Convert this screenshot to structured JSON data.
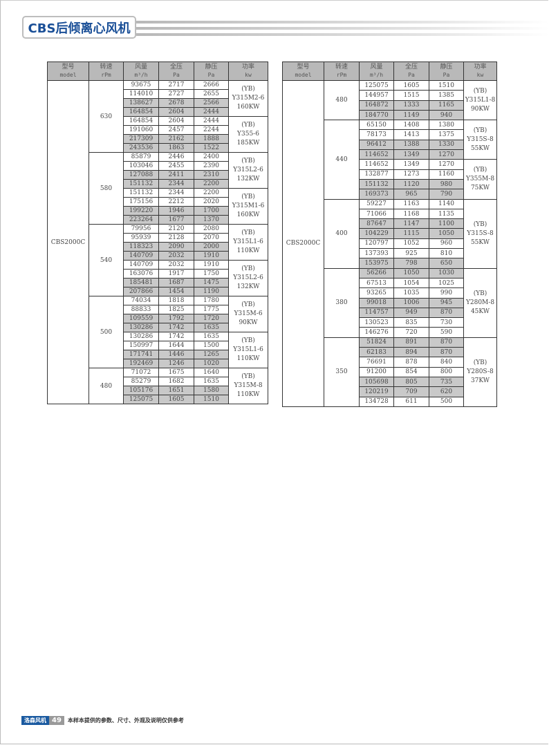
{
  "header": {
    "title": "CBS后倾离心风机"
  },
  "table_headers": [
    {
      "cn": "型号",
      "en": "model"
    },
    {
      "cn": "转速",
      "en": "rPm"
    },
    {
      "cn": "风量",
      "en": "m³/h"
    },
    {
      "cn": "全压",
      "en": "Pa"
    },
    {
      "cn": "静压",
      "en": "Pa"
    },
    {
      "cn": "功率",
      "en": "kw"
    }
  ],
  "left_table": {
    "model": "CBS2000C",
    "groups": [
      {
        "rpm": "630",
        "motors": [
          {
            "label": [
              "(YB)",
              "Y315M2-6",
              "160KW"
            ],
            "rows": [
              [
                "93675",
                "2717",
                "2666",
                false
              ],
              [
                "114010",
                "2727",
                "2655",
                false
              ],
              [
                "138627",
                "2678",
                "2566",
                true
              ],
              [
                "164854",
                "2604",
                "2444",
                true
              ]
            ]
          },
          {
            "label": [
              "(YB)",
              "Y355-6",
              "185KW"
            ],
            "rows": [
              [
                "164854",
                "2604",
                "2444",
                false
              ],
              [
                "191060",
                "2457",
                "2244",
                false
              ],
              [
                "217309",
                "2162",
                "1888",
                true
              ],
              [
                "243536",
                "1863",
                "1522",
                true
              ]
            ]
          }
        ]
      },
      {
        "rpm": "580",
        "motors": [
          {
            "label": [
              "(YB)",
              "Y315L2-6",
              "132KW"
            ],
            "rows": [
              [
                "85879",
                "2446",
                "2400",
                false
              ],
              [
                "103046",
                "2455",
                "2390",
                false
              ],
              [
                "127088",
                "2411",
                "2310",
                true
              ],
              [
                "151132",
                "2344",
                "2200",
                true
              ]
            ]
          },
          {
            "label": [
              "(YB)",
              "Y315M1-6",
              "160KW"
            ],
            "rows": [
              [
                "151132",
                "2344",
                "2200",
                false
              ],
              [
                "175156",
                "2212",
                "2020",
                false
              ],
              [
                "199220",
                "1946",
                "1700",
                true
              ],
              [
                "223264",
                "1677",
                "1370",
                true
              ]
            ]
          }
        ]
      },
      {
        "rpm": "540",
        "motors": [
          {
            "label": [
              "(YB)",
              "Y315L1-6",
              "110KW"
            ],
            "rows": [
              [
                "79956",
                "2120",
                "2080",
                false
              ],
              [
                "95939",
                "2128",
                "2070",
                false
              ],
              [
                "118323",
                "2090",
                "2000",
                true
              ],
              [
                "140709",
                "2032",
                "1910",
                true
              ]
            ]
          },
          {
            "label": [
              "(YB)",
              "Y315L2-6",
              "132KW"
            ],
            "rows": [
              [
                "140709",
                "2032",
                "1910",
                false
              ],
              [
                "163076",
                "1917",
                "1750",
                false
              ],
              [
                "185481",
                "1687",
                "1475",
                true
              ],
              [
                "207866",
                "1454",
                "1190",
                true
              ]
            ]
          }
        ]
      },
      {
        "rpm": "500",
        "motors": [
          {
            "label": [
              "(YB)",
              "Y315M-6",
              "90KW"
            ],
            "rows": [
              [
                "74034",
                "1818",
                "1780",
                false
              ],
              [
                "88833",
                "1825",
                "1775",
                false
              ],
              [
                "109559",
                "1792",
                "1720",
                true
              ],
              [
                "130286",
                "1742",
                "1635",
                true
              ]
            ]
          },
          {
            "label": [
              "(YB)",
              "Y315L1-6",
              "110KW"
            ],
            "rows": [
              [
                "130286",
                "1742",
                "1635",
                false
              ],
              [
                "150997",
                "1644",
                "1500",
                false
              ],
              [
                "171741",
                "1446",
                "1265",
                true
              ],
              [
                "192469",
                "1246",
                "1020",
                true
              ]
            ]
          }
        ]
      },
      {
        "rpm": "480",
        "motors": [
          {
            "label": [
              "(YB)",
              "Y315M-8",
              "110KW"
            ],
            "rows": [
              [
                "71072",
                "1675",
                "1640",
                false
              ],
              [
                "85279",
                "1682",
                "1635",
                false
              ],
              [
                "105176",
                "1651",
                "1580",
                true
              ],
              [
                "125075",
                "1605",
                "1510",
                true
              ]
            ]
          }
        ]
      }
    ]
  },
  "right_table": {
    "model": "CBS2000C",
    "groups": [
      {
        "rpm": "480",
        "motors": [
          {
            "label": [
              "(YB)",
              "Y315L1-8",
              "90KW"
            ],
            "rows": [
              [
                "125075",
                "1605",
                "1510",
                false
              ],
              [
                "144957",
                "1515",
                "1385",
                false
              ],
              [
                "164872",
                "1333",
                "1165",
                true
              ],
              [
                "184770",
                "1149",
                "940",
                true
              ]
            ]
          }
        ]
      },
      {
        "rpm": "440",
        "motors": [
          {
            "label": [
              "(YB)",
              "Y315S-8",
              "55KW"
            ],
            "rows": [
              [
                "65150",
                "1408",
                "1380",
                false
              ],
              [
                "78173",
                "1413",
                "1375",
                false
              ],
              [
                "96412",
                "1388",
                "1330",
                true
              ],
              [
                "114652",
                "1349",
                "1270",
                true
              ]
            ]
          },
          {
            "label": [
              "(YB)",
              "Y355M-8",
              "75KW"
            ],
            "rows": [
              [
                "114652",
                "1349",
                "1270",
                false
              ],
              [
                "132877",
                "1273",
                "1160",
                false
              ],
              [
                "151132",
                "1120",
                "980",
                true
              ],
              [
                "169373",
                "965",
                "790",
                true
              ]
            ]
          }
        ]
      },
      {
        "rpm": "400",
        "motors": [
          {
            "label": [
              "(YB)",
              "Y315S-8",
              "55KW"
            ],
            "rows": [
              [
                "59227",
                "1163",
                "1140",
                false
              ],
              [
                "71066",
                "1168",
                "1135",
                false
              ],
              [
                "87647",
                "1147",
                "1100",
                true
              ],
              [
                "104229",
                "1115",
                "1050",
                true
              ],
              [
                "120797",
                "1052",
                "960",
                false
              ],
              [
                "137393",
                "925",
                "810",
                false
              ],
              [
                "153975",
                "798",
                "650",
                true
              ]
            ]
          }
        ]
      },
      {
        "rpm": "380",
        "motors": [
          {
            "label": [
              "(YB)",
              "Y280M-8",
              "45KW"
            ],
            "rows": [
              [
                "56266",
                "1050",
                "1030",
                true
              ],
              [
                "67513",
                "1054",
                "1025",
                false
              ],
              [
                "93265",
                "1035",
                "990",
                false
              ],
              [
                "99018",
                "1006",
                "945",
                true
              ],
              [
                "114757",
                "949",
                "870",
                true
              ],
              [
                "130523",
                "835",
                "730",
                false
              ],
              [
                "146276",
                "720",
                "590",
                false
              ]
            ]
          }
        ]
      },
      {
        "rpm": "350",
        "motors": [
          {
            "label": [
              "(YB)",
              "Y280S-8",
              "37KW"
            ],
            "rows": [
              [
                "51824",
                "891",
                "870",
                true
              ],
              [
                "62183",
                "894",
                "870",
                true
              ],
              [
                "76691",
                "878",
                "840",
                false
              ],
              [
                "91200",
                "854",
                "800",
                false
              ],
              [
                "105698",
                "805",
                "735",
                true
              ],
              [
                "120219",
                "709",
                "620",
                true
              ],
              [
                "134728",
                "611",
                "500",
                false
              ]
            ]
          }
        ]
      }
    ]
  },
  "footer": {
    "brand": "洛森风机",
    "page_number": "49",
    "note": "本样本提供的参数、尺寸、外观及说明仅供参考"
  },
  "colors": {
    "brand_blue": "#1a4f97",
    "header_gray": "#b9b9b9",
    "shaded_row": "#c9c9c9"
  }
}
